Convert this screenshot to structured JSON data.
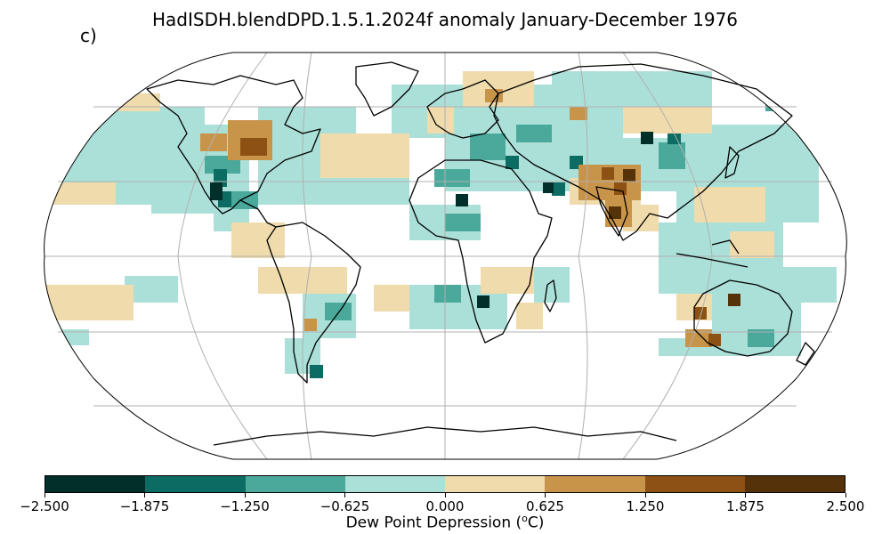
{
  "panel_label": "c)",
  "title": "HadISDH.blendDPD.1.5.1.2024f anomaly January-December 1976",
  "map": {
    "projection": "Robinson",
    "graticule": true,
    "coastlines": true
  },
  "colorbar": {
    "label": "Dew Point Depression (",
    "label_sup": "o",
    "label_end": "C)",
    "colors": [
      "#01302a",
      "#0c6b62",
      "#4aa99b",
      "#abe0d8",
      "#efdbac",
      "#c8944a",
      "#8d5213",
      "#553209"
    ],
    "ticks": [
      "−2.500",
      "−1.875",
      "−1.250",
      "−0.625",
      "0.000",
      "0.625",
      "1.250",
      "1.875",
      "2.500"
    ]
  }
}
